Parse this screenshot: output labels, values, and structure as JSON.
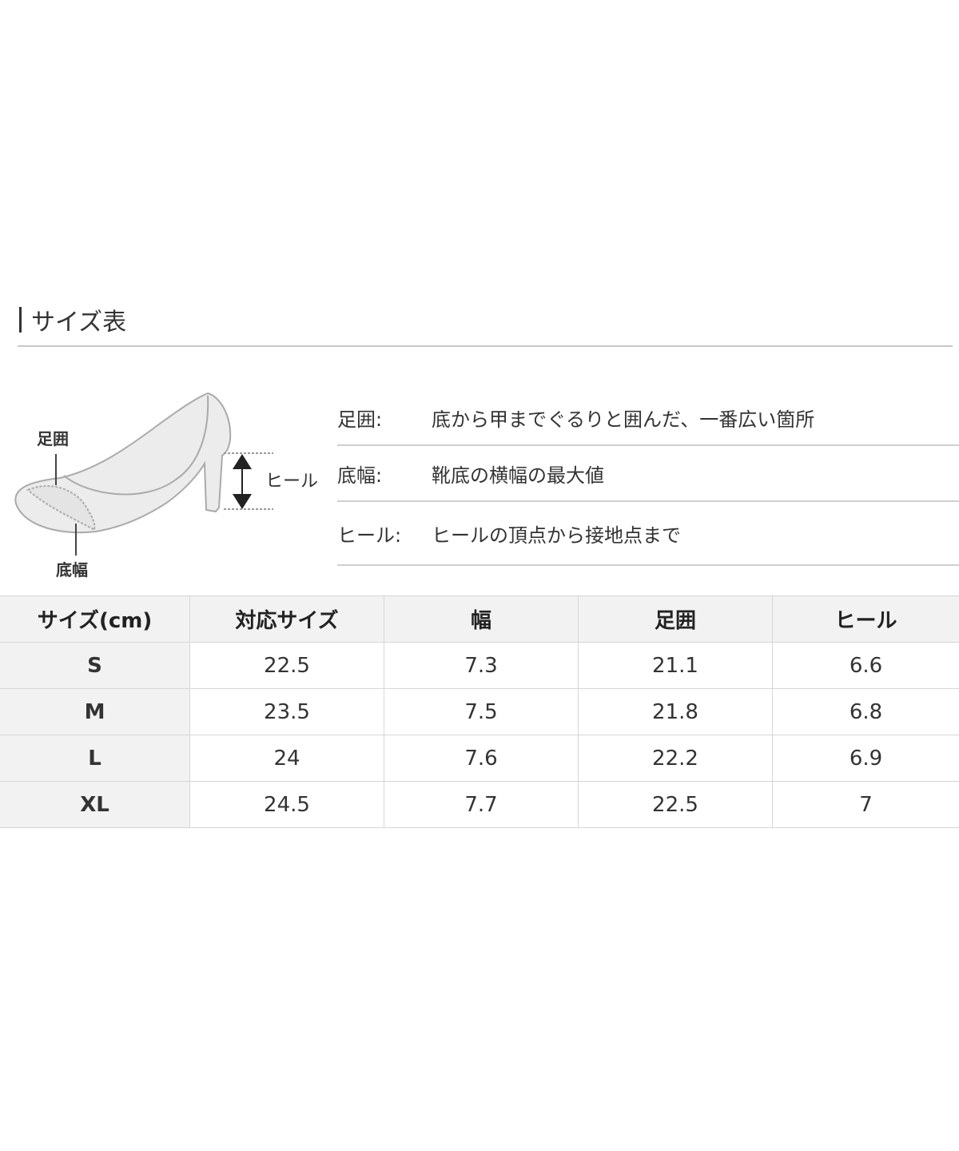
{
  "title": "サイズ表",
  "diagram": {
    "label_circumference": "足囲",
    "label_sole_width": "底幅",
    "label_heel": "ヒール"
  },
  "definitions": [
    {
      "term": "足囲:",
      "desc": "底から甲までぐるりと囲んだ、一番広い箇所"
    },
    {
      "term": "底幅:",
      "desc": "靴底の横幅の最大値"
    },
    {
      "term": "ヒール:",
      "desc": "ヒールの頂点から接地点まで"
    }
  ],
  "table": {
    "headers": [
      "サイズ(cm)",
      "対応サイズ",
      "幅",
      "足囲",
      "ヒール"
    ],
    "rows": [
      [
        "S",
        "22.5",
        "7.3",
        "21.1",
        "6.6"
      ],
      [
        "M",
        "23.5",
        "7.5",
        "21.8",
        "6.8"
      ],
      [
        "L",
        "24",
        "7.6",
        "22.2",
        "6.9"
      ],
      [
        "XL",
        "24.5",
        "7.7",
        "22.5",
        "7"
      ]
    ]
  }
}
